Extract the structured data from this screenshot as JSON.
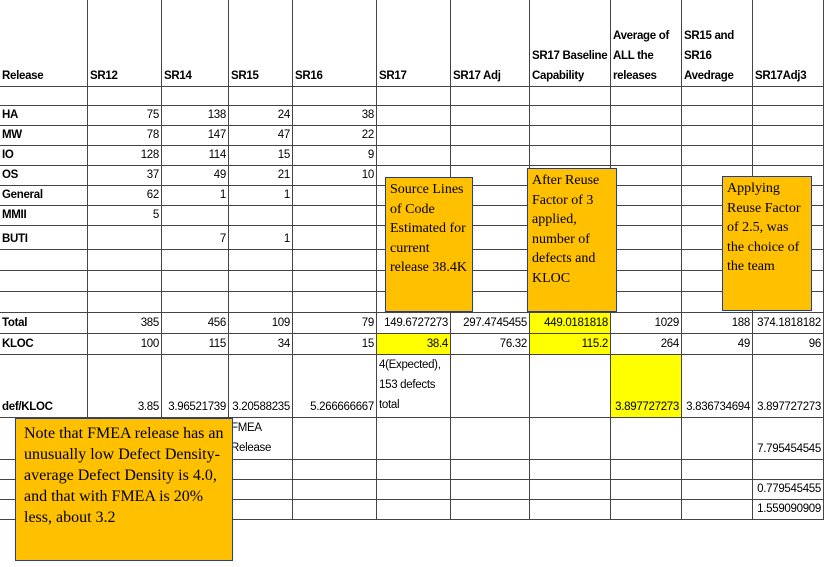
{
  "table": {
    "header": [
      "Release",
      "SR12",
      "SR14",
      "SR15",
      "SR16",
      "SR17",
      "SR17 Adj",
      "SR17 Baseline Capability",
      "Average of ALL the releases",
      "SR15 and SR16 Avedrage",
      "SR17Adj3"
    ],
    "rows": [
      [
        null,
        null,
        null,
        null,
        null,
        null,
        null,
        null,
        null,
        null,
        null
      ],
      [
        "HA",
        "75",
        "138",
        "24",
        "38",
        null,
        null,
        null,
        null,
        null,
        null
      ],
      [
        "MW",
        "78",
        "147",
        "47",
        "22",
        null,
        null,
        null,
        null,
        null,
        null
      ],
      [
        "IO",
        "128",
        "114",
        "15",
        "9",
        null,
        null,
        null,
        null,
        null,
        null
      ],
      [
        "OS",
        "37",
        "49",
        "21",
        "10",
        null,
        null,
        null,
        null,
        null,
        null
      ],
      [
        "General",
        "62",
        "1",
        "1",
        null,
        null,
        null,
        null,
        null,
        null,
        null
      ],
      [
        "MMII",
        "5",
        null,
        null,
        null,
        null,
        null,
        null,
        null,
        null,
        null
      ],
      [
        "BUTI",
        null,
        "7",
        "1",
        null,
        null,
        null,
        null,
        null,
        null,
        null
      ],
      [
        null,
        null,
        null,
        null,
        null,
        null,
        null,
        null,
        null,
        null,
        null
      ],
      [
        null,
        null,
        null,
        null,
        null,
        null,
        null,
        null,
        null,
        null,
        null
      ],
      [
        null,
        null,
        null,
        null,
        null,
        null,
        null,
        null,
        null,
        null,
        null
      ],
      [
        "Total",
        "385",
        "456",
        "109",
        "79",
        "149.6727273",
        "297.4745455",
        "449.0181818",
        "1029",
        "188",
        "374.1818182"
      ],
      [
        "KLOC",
        "100",
        "115",
        "34",
        "15",
        "38.4",
        "76.32",
        "115.2",
        "264",
        "49",
        "96"
      ],
      [
        "def/KLOC",
        "3.85",
        "3.96521739",
        "3.20588235",
        "5.266666667",
        "4(Expected), 153 defects total",
        null,
        null,
        "3.897727273",
        "3.836734694",
        "3.897727273"
      ],
      [
        null,
        null,
        null,
        "FMEA Release",
        null,
        null,
        null,
        null,
        null,
        null,
        "7.795454545"
      ],
      [
        null,
        null,
        null,
        null,
        null,
        null,
        null,
        null,
        null,
        null,
        null
      ],
      [
        null,
        null,
        null,
        null,
        null,
        null,
        null,
        null,
        null,
        null,
        "0.779545455"
      ],
      [
        null,
        null,
        null,
        null,
        null,
        null,
        null,
        null,
        null,
        null,
        "1.559090909"
      ]
    ]
  },
  "notes": [
    "Source Lines of Code Estimated for current release 38.4K",
    "After Reuse Factor of 3 applied, number of defects and KLOC",
    "Applying Reuse Factor of 2.5, was the choice of the team",
    "Note that FMEA release has an unusually low Defect Density- average Defect Density is 4.0, and that with FMEA is 20% less, about 3.2"
  ]
}
